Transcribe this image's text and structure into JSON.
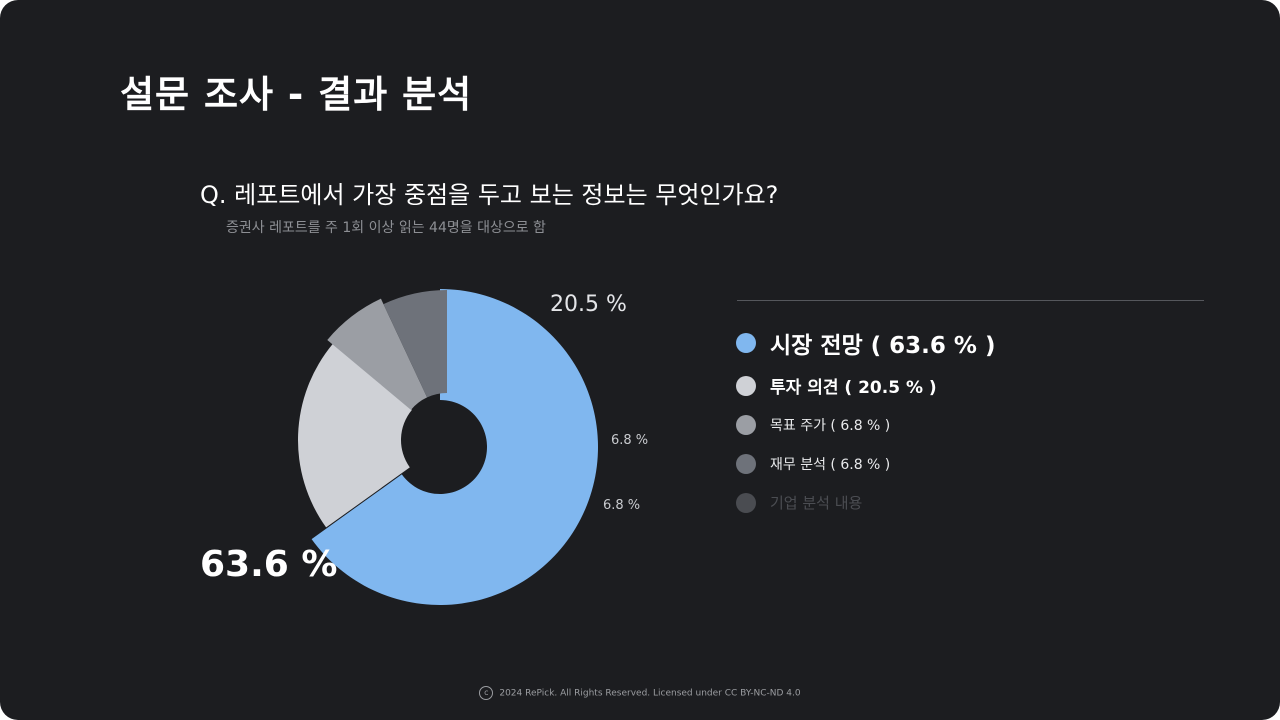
{
  "header": {
    "title": "설문 조사 - 결과 분석",
    "question": "Q. 레포트에서 가장 중점을 두고 보는 정보는 무엇인가요?",
    "subtitle": "증권사 레포트를 주 1회 이상 읽는 44명을 대상으로 함"
  },
  "chart_data": {
    "type": "pie",
    "slices": [
      {
        "label": "시장 전망",
        "value": 63.6,
        "value_label": "63.6 %",
        "legend_text": "시장 전망 ( 63.6 % )",
        "color": "#80b7ef"
      },
      {
        "label": "투자 의견",
        "value": 20.5,
        "value_label": "20.5 %",
        "legend_text": "투자 의견 ( 20.5 % )",
        "color": "#cfd1d6"
      },
      {
        "label": "목표 주가",
        "value": 6.8,
        "value_label": "6.8 %",
        "legend_text": "목표 주가 ( 6.8 % )",
        "color": "#9b9ea4"
      },
      {
        "label": "재무 분석",
        "value": 6.8,
        "value_label": "6.8 %",
        "legend_text": "재무 분석 ( 6.8 % )",
        "color": "#6e727a"
      },
      {
        "label": "기업 분석 내용",
        "value": 0,
        "value_label": "",
        "legend_text": "기업 분석 내용",
        "color": "#4a4c51"
      }
    ],
    "legend_placement": "right"
  },
  "footer": {
    "icon": "copyright-icon",
    "text": "2024 RePick. All Rights Reserved. Licensed under CC BY-NC-ND 4.0"
  }
}
